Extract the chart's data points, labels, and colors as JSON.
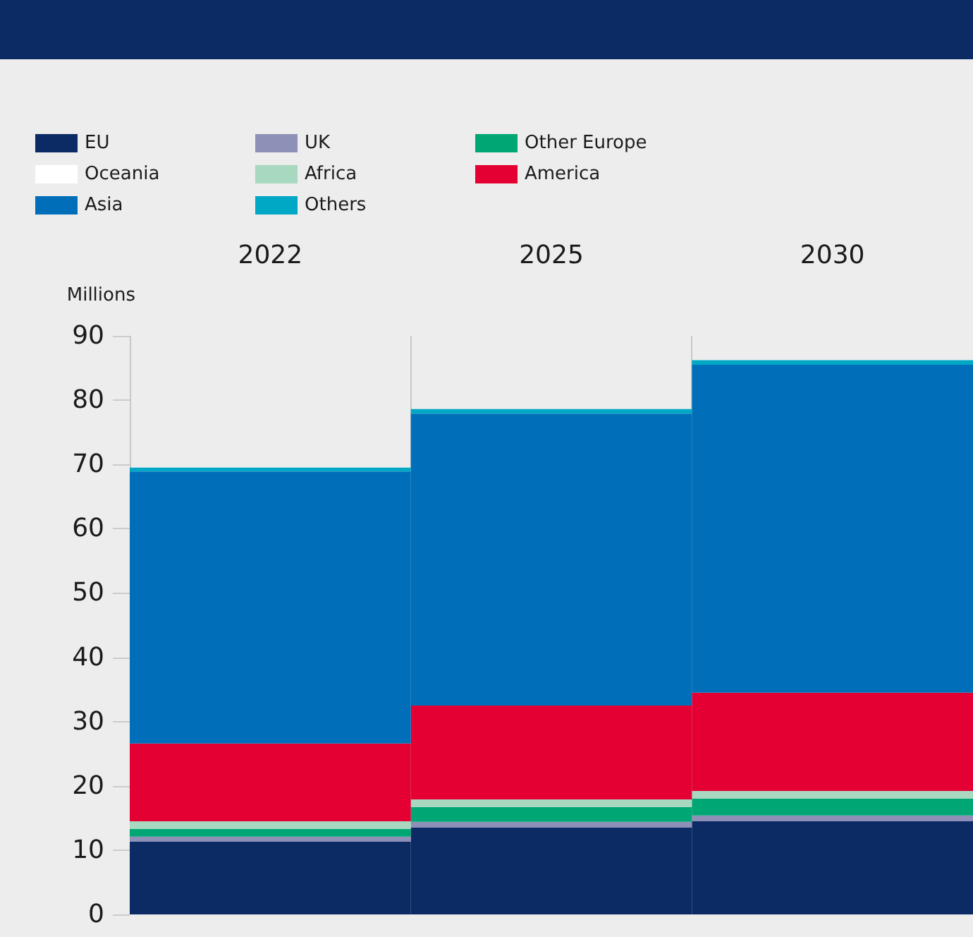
{
  "chart_data": {
    "type": "bar",
    "stacked": true,
    "ylabel": "Millions",
    "categories": [
      "2022",
      "2025",
      "2030"
    ],
    "ylim": [
      0,
      90
    ],
    "yticks": [
      0,
      10,
      20,
      30,
      40,
      50,
      60,
      70,
      80,
      90
    ],
    "grid": "x",
    "legend": "top left",
    "series": [
      {
        "name": "EU",
        "color": "#0c2a63",
        "values": [
          11.3,
          13.5,
          14.5
        ]
      },
      {
        "name": "UK",
        "color": "#8e90b8",
        "values": [
          0.8,
          0.9,
          0.9
        ]
      },
      {
        "name": "Oceania",
        "color": "#ffffff",
        "values": [
          0,
          0,
          0
        ]
      },
      {
        "name": "Other Europe",
        "color": "#00a774",
        "values": [
          1.2,
          2.3,
          2.6
        ]
      },
      {
        "name": "Africa",
        "color": "#a8d8bf",
        "values": [
          1.2,
          1.2,
          1.2
        ]
      },
      {
        "name": "America",
        "color": "#e40032",
        "values": [
          12.1,
          14.6,
          15.3
        ]
      },
      {
        "name": "Asia",
        "color": "#006eb9",
        "values": [
          42.3,
          45.4,
          51.0
        ]
      },
      {
        "name": "Others",
        "color": "#00a8c6",
        "values": [
          0.6,
          0.7,
          0.7
        ]
      }
    ]
  }
}
